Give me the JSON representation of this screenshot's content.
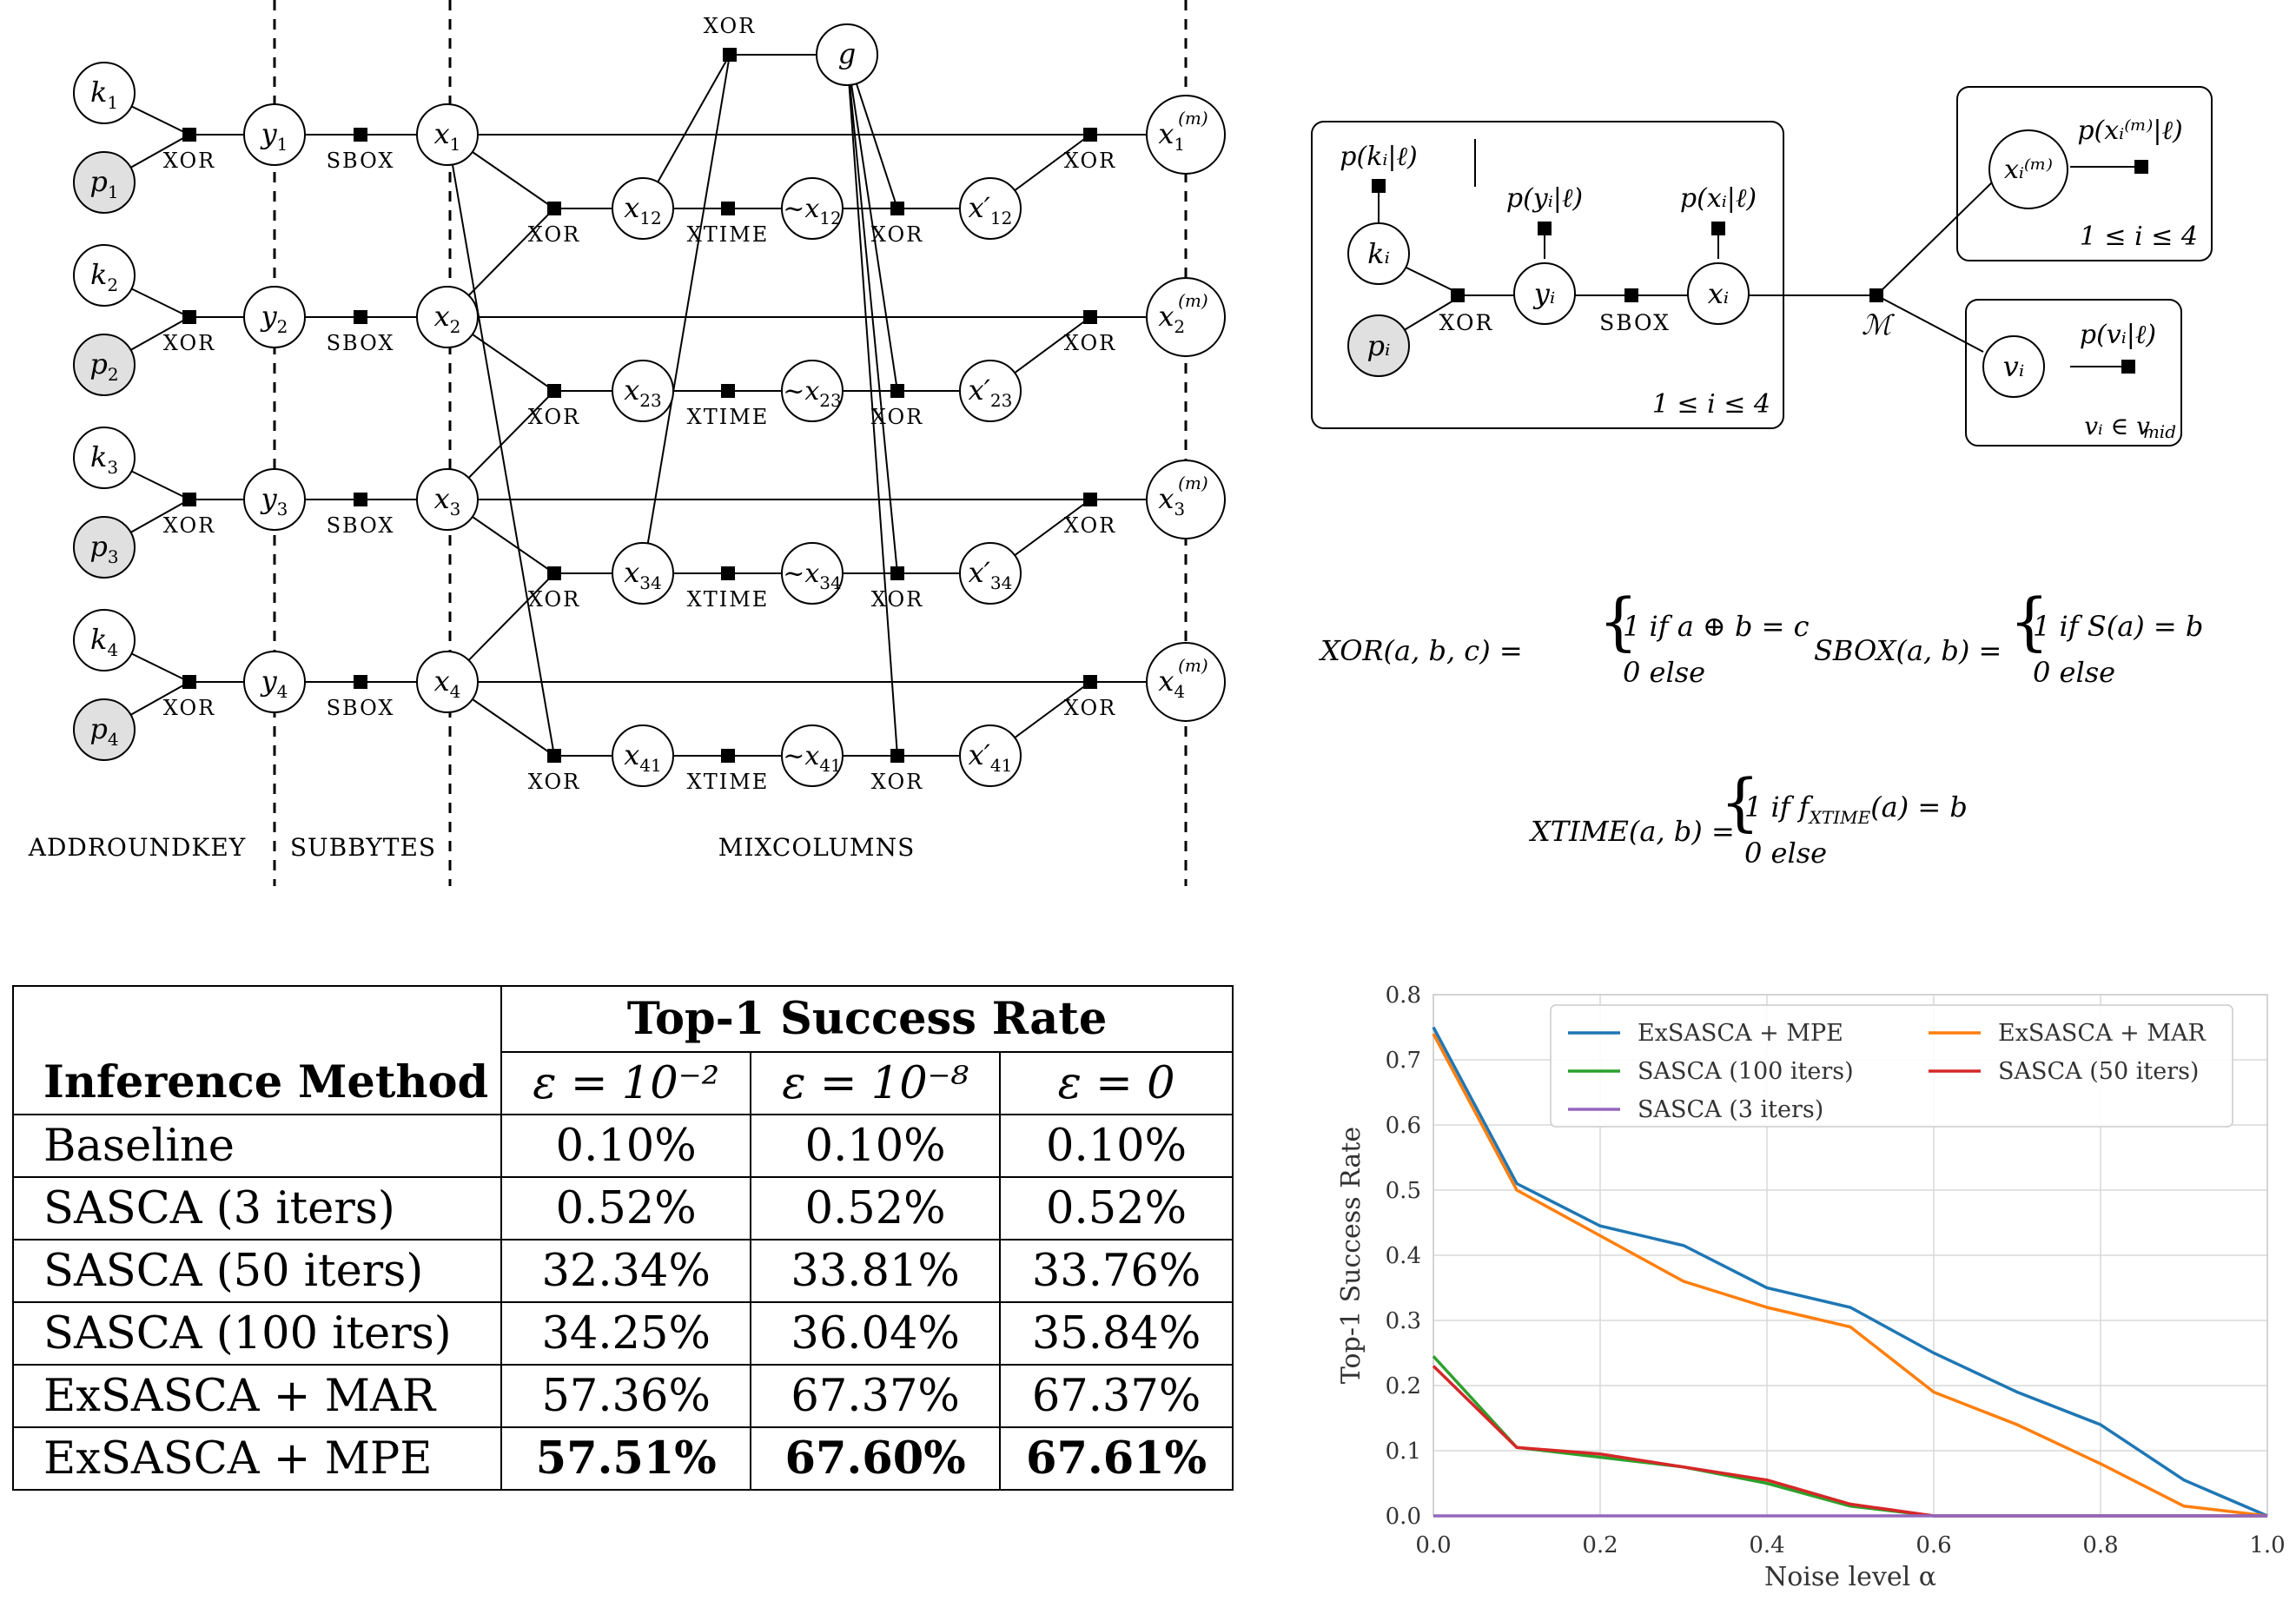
{
  "factor_graph": {
    "key_nodes": [
      "k",
      "k",
      "k",
      "k"
    ],
    "plain_nodes": [
      "p",
      "p",
      "p",
      "p"
    ],
    "indices": [
      "1",
      "2",
      "3",
      "4"
    ],
    "y_node": "y",
    "x_node": "x",
    "mix_pairs": [
      "12",
      "23",
      "34",
      "41"
    ],
    "g_node": "g",
    "out_super": "(m)",
    "xor_label": "XOR",
    "sbox_label": "SBOX",
    "xtime_label": "XTIME",
    "stages": {
      "addroundkey": "ADDROUNDKEY",
      "subbytes": "SUBBYTES",
      "mixcolumns": "MIXCOLUMNS"
    }
  },
  "plate_model": {
    "p_k": "p(kᵢ|ℓ)",
    "p_y": "p(yᵢ|ℓ)",
    "p_x": "p(xᵢ|ℓ)",
    "p_xm": "p(xᵢ⁽ᵐ⁾|ℓ)",
    "p_v": "p(vᵢ|ℓ)",
    "node_k": "kᵢ",
    "node_p": "pᵢ",
    "node_y": "yᵢ",
    "node_x": "xᵢ",
    "node_xm": "xᵢ⁽ᵐ⁾",
    "node_v": "vᵢ",
    "factor_m": "ℳ",
    "xor_label": "XOR",
    "sbox_label": "SBOX",
    "plate_main": "1 ≤ i ≤ 4",
    "plate_out": "1 ≤ i ≤ 4",
    "plate_v": "vᵢ ∈ v",
    "plate_v_sub": "mid"
  },
  "definitions": {
    "xor_lhs": "XOR(a, b, c) =",
    "xor_case1": "1   if a ⊕ b = c",
    "xor_case2": "0   else",
    "sbox_lhs": "SBOX(a, b) =",
    "sbox_case1": "1   if S(a) = b",
    "sbox_case2": "0   else",
    "xtime_lhs": "XTIME(a, b) =",
    "xtime_case1_a": "1   if f",
    "xtime_case1_sub": "XTIME",
    "xtime_case1_b": "(a) = b",
    "xtime_case2": "0   else"
  },
  "table": {
    "group_header": "Top-1 Success Rate",
    "method_header": "Inference Method",
    "eps_headers": [
      "ε = 10⁻²",
      "ε = 10⁻⁸",
      "ε = 0"
    ],
    "rows": [
      {
        "method": "Baseline",
        "values": [
          "0.10%",
          "0.10%",
          "0.10%"
        ]
      },
      {
        "method": "SASCA (3 iters)",
        "values": [
          "0.52%",
          "0.52%",
          "0.52%"
        ]
      },
      {
        "method": "SASCA (50 iters)",
        "values": [
          "32.34%",
          "33.81%",
          "33.76%"
        ]
      },
      {
        "method": "SASCA (100 iters)",
        "values": [
          "34.25%",
          "36.04%",
          "35.84%"
        ]
      },
      {
        "method": "ExSASCA + MAR",
        "values": [
          "57.36%",
          "67.37%",
          "67.37%"
        ]
      },
      {
        "method": "ExSASCA + MPE",
        "values": [
          "57.51%",
          "67.60%",
          "67.61%"
        ]
      }
    ]
  },
  "chart_data": {
    "type": "line",
    "xlabel": "Noise level α",
    "ylabel": "Top-1 Success Rate",
    "xlim": [
      0,
      1
    ],
    "ylim": [
      0,
      0.8
    ],
    "xticks": [
      "0.0",
      "0.2",
      "0.4",
      "0.6",
      "0.8",
      "1.0"
    ],
    "yticks": [
      "0.0",
      "0.1",
      "0.2",
      "0.3",
      "0.4",
      "0.5",
      "0.6",
      "0.7",
      "0.8"
    ],
    "grid": true,
    "legend_position": "top",
    "x": [
      0.0,
      0.1,
      0.2,
      0.3,
      0.4,
      0.5,
      0.6,
      0.7,
      0.8,
      0.9,
      1.0
    ],
    "series": [
      {
        "name": "ExSASCA + MPE",
        "color": "#1f77b4",
        "values": [
          0.75,
          0.51,
          0.445,
          0.415,
          0.35,
          0.32,
          0.25,
          0.19,
          0.14,
          0.055,
          0.0
        ]
      },
      {
        "name": "ExSASCA + MAR",
        "color": "#ff7f0e",
        "values": [
          0.74,
          0.5,
          0.43,
          0.36,
          0.32,
          0.29,
          0.19,
          0.14,
          0.08,
          0.015,
          0.0
        ]
      },
      {
        "name": "SASCA (100 iters)",
        "color": "#2ca02c",
        "values": [
          0.245,
          0.105,
          0.09,
          0.075,
          0.05,
          0.015,
          0.0,
          0.0,
          0.0,
          0.0,
          0.0
        ]
      },
      {
        "name": "SASCA (50 iters)",
        "color": "#d62728",
        "values": [
          0.23,
          0.105,
          0.095,
          0.075,
          0.055,
          0.018,
          0.0,
          0.0,
          0.0,
          0.0,
          0.0
        ]
      },
      {
        "name": "SASCA (3 iters)",
        "color": "#9467bd",
        "values": [
          0.0,
          0.0,
          0.0,
          0.0,
          0.0,
          0.0,
          0.0,
          0.0,
          0.0,
          0.0,
          0.0
        ]
      }
    ]
  }
}
